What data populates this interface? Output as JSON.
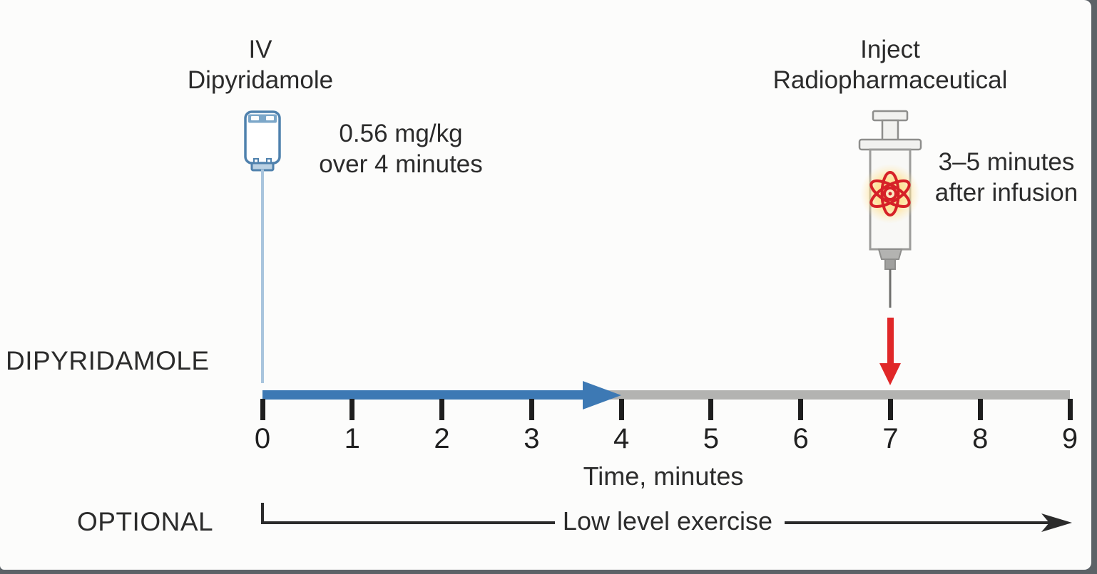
{
  "figure": {
    "iv_label": {
      "line1": "IV",
      "line2": "Dipyridamole"
    },
    "dose_label": {
      "line1": "0.56 mg/kg",
      "line2": "over 4 minutes"
    },
    "inject_label": {
      "line1": "Inject",
      "line2": "Radiopharmaceutical"
    },
    "after_label": {
      "line1": "3–5 minutes",
      "line2": "after infusion"
    },
    "row_label": "DIPYRIDAMOLE",
    "optional_label": "OPTIONAL",
    "exercise_label": "Low level exercise",
    "axis_label": "Time, minutes",
    "timeline": {
      "ticks": [
        "0",
        "1",
        "2",
        "3",
        "4",
        "5",
        "6",
        "7",
        "8",
        "9"
      ],
      "axis_min": 0,
      "axis_max": 9,
      "infusion_start": 0,
      "infusion_end": 4,
      "injection_time": 7
    },
    "colors": {
      "infusion_arrow": "#3d79b4",
      "baseline": "#b3b3b1",
      "injection_arrow": "#e02728",
      "text": "#2b2b2b",
      "bottle_outline": "#4f81ad",
      "atom": "#d62128"
    }
  }
}
